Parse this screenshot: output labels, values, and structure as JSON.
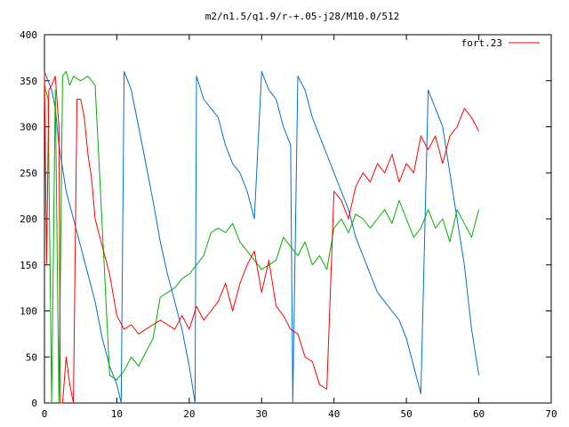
{
  "chart_data": {
    "type": "line",
    "title": "m2/n1.5/q1.9/r-+.05-j28/M10.0/512",
    "xlabel": "",
    "ylabel": "",
    "xlim": [
      0,
      70
    ],
    "ylim": [
      0,
      400
    ],
    "xticks": [
      0,
      10,
      20,
      30,
      40,
      50,
      60,
      70
    ],
    "yticks": [
      0,
      50,
      100,
      150,
      200,
      250,
      300,
      350,
      400
    ],
    "grid": false,
    "legend_position": "top-right",
    "legend": [
      {
        "label": "fort.23",
        "color": "#ff0000"
      }
    ],
    "series": [
      {
        "name": "fort.23",
        "color": "#ff0000",
        "x": [
          0,
          0.3,
          0.6,
          1.0,
          1.5,
          2.0,
          2.2,
          2.5,
          3.0,
          3.5,
          4.0,
          4.5,
          5.0,
          5.5,
          6.0,
          6.5,
          7.0,
          8.0,
          9.0,
          10.0,
          11.0,
          12.0,
          13.0,
          14.0,
          15.0,
          16.0,
          17.0,
          18.0,
          19.0,
          20.0,
          21.0,
          22.0,
          23.0,
          24.0,
          25.0,
          26.0,
          27.0,
          28.0,
          29.0,
          30.0,
          31.0,
          32.0,
          33.0,
          34.0,
          35.0,
          36.0,
          37.0,
          38.0,
          39.0,
          40.0,
          41.0,
          42.0,
          43.0,
          44.0,
          45.0,
          46.0,
          47.0,
          48.0,
          49.0,
          50.0,
          51.0,
          52.0,
          53.0,
          54.0,
          55.0,
          56.0,
          57.0,
          58.0,
          59.0,
          60.0
        ],
        "y": [
          360,
          150,
          340,
          345,
          355,
          300,
          0,
          0,
          50,
          20,
          0,
          330,
          330,
          310,
          270,
          245,
          200,
          170,
          140,
          95,
          80,
          85,
          75,
          80,
          85,
          90,
          85,
          80,
          95,
          80,
          105,
          90,
          100,
          110,
          130,
          100,
          130,
          150,
          165,
          120,
          155,
          105,
          95,
          80,
          75,
          50,
          45,
          20,
          15,
          230,
          220,
          200,
          235,
          250,
          240,
          260,
          250,
          270,
          240,
          260,
          250,
          290,
          275,
          290,
          260,
          290,
          300,
          320,
          310,
          295
        ]
      },
      {
        "name": "",
        "color": "#00b000",
        "x": [
          0,
          0.5,
          1.0,
          1.5,
          2.0,
          2.5,
          3.0,
          3.5,
          4.0,
          5.0,
          6.0,
          7.0,
          8.0,
          9.0,
          10.0,
          11.0,
          12.0,
          13.0,
          14.0,
          15.0,
          16.0,
          17.0,
          18.0,
          19.0,
          20.0,
          21.0,
          22.0,
          23.0,
          24.0,
          25.0,
          26.0,
          27.0,
          28.0,
          29.0,
          30.0,
          31.0,
          32.0,
          33.0,
          34.0,
          35.0,
          36.0,
          37.0,
          38.0,
          39.0,
          40.0,
          41.0,
          42.0,
          43.0,
          44.0,
          45.0,
          46.0,
          47.0,
          48.0,
          49.0,
          50.0,
          51.0,
          52.0,
          53.0,
          54.0,
          55.0,
          56.0,
          57.0,
          58.0,
          59.0,
          60.0
        ],
        "y": [
          345,
          330,
          0,
          340,
          0,
          355,
          360,
          345,
          355,
          350,
          355,
          345,
          190,
          30,
          25,
          35,
          50,
          40,
          55,
          70,
          115,
          120,
          125,
          135,
          140,
          150,
          160,
          185,
          190,
          185,
          195,
          175,
          165,
          155,
          145,
          150,
          155,
          180,
          170,
          160,
          175,
          150,
          160,
          145,
          190,
          200,
          185,
          205,
          200,
          190,
          200,
          210,
          195,
          220,
          200,
          180,
          190,
          210,
          190,
          200,
          175,
          210,
          195,
          180,
          210
        ]
      },
      {
        "name": "",
        "color": "#0070d0",
        "x": [
          0,
          0.5,
          1.0,
          1.5,
          2.0,
          3.0,
          4.0,
          5.0,
          6.0,
          7.0,
          8.0,
          9.0,
          10.0,
          10.6,
          11.0,
          12.0,
          13.0,
          14.0,
          15.0,
          16.0,
          17.0,
          18.0,
          19.0,
          20.0,
          20.8,
          21.0,
          22.0,
          23.0,
          24.0,
          25.0,
          26.0,
          27.0,
          28.0,
          29.0,
          30.0,
          31.0,
          32.0,
          33.0,
          34.0,
          34.3,
          35.0,
          36.0,
          37.0,
          38.0,
          39.0,
          40.0,
          41.0,
          42.0,
          43.0,
          44.0,
          45.0,
          46.0,
          47.0,
          48.0,
          49.0,
          50.0,
          51.0,
          52.0,
          53.0,
          54.0,
          55.0,
          56.0,
          57.0,
          58.0,
          59.0,
          60.0
        ],
        "y": [
          360,
          350,
          340,
          320,
          280,
          230,
          200,
          170,
          140,
          110,
          70,
          40,
          20,
          0,
          360,
          340,
          300,
          260,
          220,
          175,
          140,
          110,
          80,
          40,
          0,
          355,
          330,
          320,
          310,
          280,
          260,
          250,
          230,
          200,
          360,
          340,
          330,
          300,
          280,
          0,
          355,
          340,
          310,
          290,
          270,
          250,
          230,
          210,
          180,
          160,
          140,
          120,
          110,
          100,
          90,
          70,
          40,
          10,
          340,
          320,
          300,
          250,
          200,
          150,
          80,
          30
        ]
      }
    ]
  }
}
